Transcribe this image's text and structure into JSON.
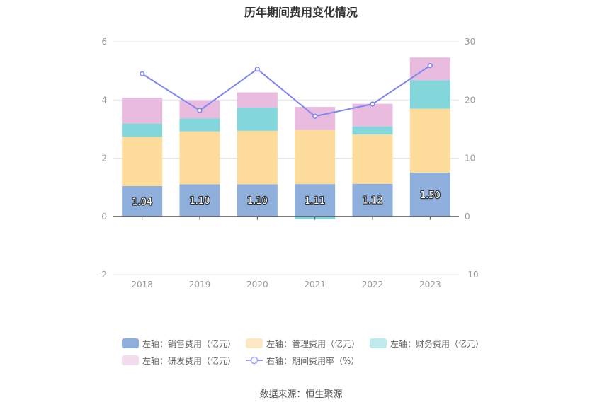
{
  "chart_data": {
    "type": "bar",
    "title": "历年期间费用变化情况",
    "categories": [
      "2018",
      "2019",
      "2020",
      "2021",
      "2022",
      "2023"
    ],
    "series": [
      {
        "name": "左轴：销售费用（亿元）",
        "kind": "bar",
        "axis": "left",
        "color": "#8eaedc",
        "values": [
          1.04,
          1.1,
          1.1,
          1.11,
          1.12,
          1.5
        ]
      },
      {
        "name": "左轴：管理费用（亿元）",
        "kind": "bar",
        "axis": "left",
        "color": "#fddb9b",
        "values": [
          1.69,
          1.82,
          1.84,
          1.86,
          1.69,
          2.2
        ]
      },
      {
        "name": "左轴：财务费用（亿元）",
        "kind": "bar",
        "axis": "left",
        "color": "#83d6d9",
        "values": [
          0.46,
          0.45,
          0.8,
          -0.1,
          0.28,
          0.98
        ]
      },
      {
        "name": "左轴：研发费用（亿元）",
        "kind": "bar",
        "axis": "left",
        "color": "#e8bbdf",
        "values": [
          0.89,
          0.62,
          0.52,
          0.79,
          0.78,
          0.78
        ]
      },
      {
        "name": "右轴：期间费用率（%）",
        "kind": "line",
        "axis": "right",
        "color": "#7f86f2",
        "values": [
          24.5,
          18.2,
          25.3,
          17.2,
          19.3,
          25.9
        ]
      }
    ],
    "y_left": {
      "ticks": [
        "6",
        "4",
        "2",
        "0",
        "-2"
      ],
      "min": -2,
      "max": 6
    },
    "y_right": {
      "ticks": [
        "30",
        "20",
        "10",
        "0",
        "-10"
      ],
      "min": -10,
      "max": 30
    },
    "data_labels": [
      "1.04",
      "1.10",
      "1.10",
      "1.11",
      "1.12",
      "1.50"
    ],
    "grid": true,
    "legend_position": "bottom"
  },
  "source": "数据来源：恒生聚源"
}
